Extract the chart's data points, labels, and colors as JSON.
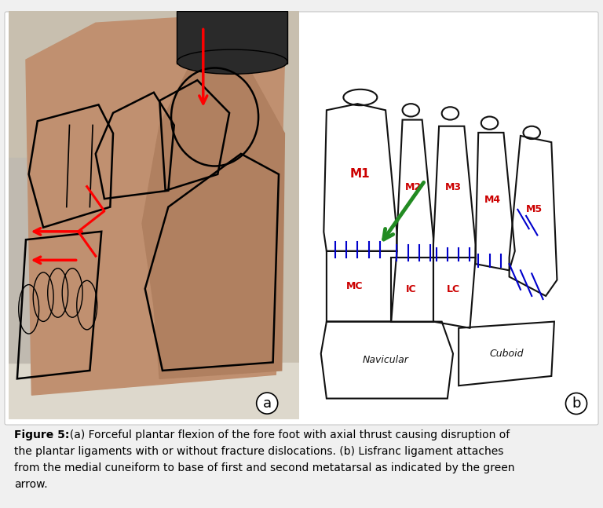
{
  "background_color": "#f0f0f0",
  "panel_bg": "#ffffff",
  "label_a": "a",
  "label_b": "b",
  "red": "#cc0000",
  "green": "#228B22",
  "blue": "#0000cc",
  "black": "#111111",
  "caption_line1": "Figure 5:  (a) Forceful plantar flexion of the fore foot with axial thrust causing disruption of",
  "caption_line2": "the plantar ligaments with or without fracture dislocations. (b) Lisfranc ligament attaches",
  "caption_line3": "from the medial cuneiform to base of first and second metatarsal as indicated by the green",
  "caption_line4": "arrow."
}
